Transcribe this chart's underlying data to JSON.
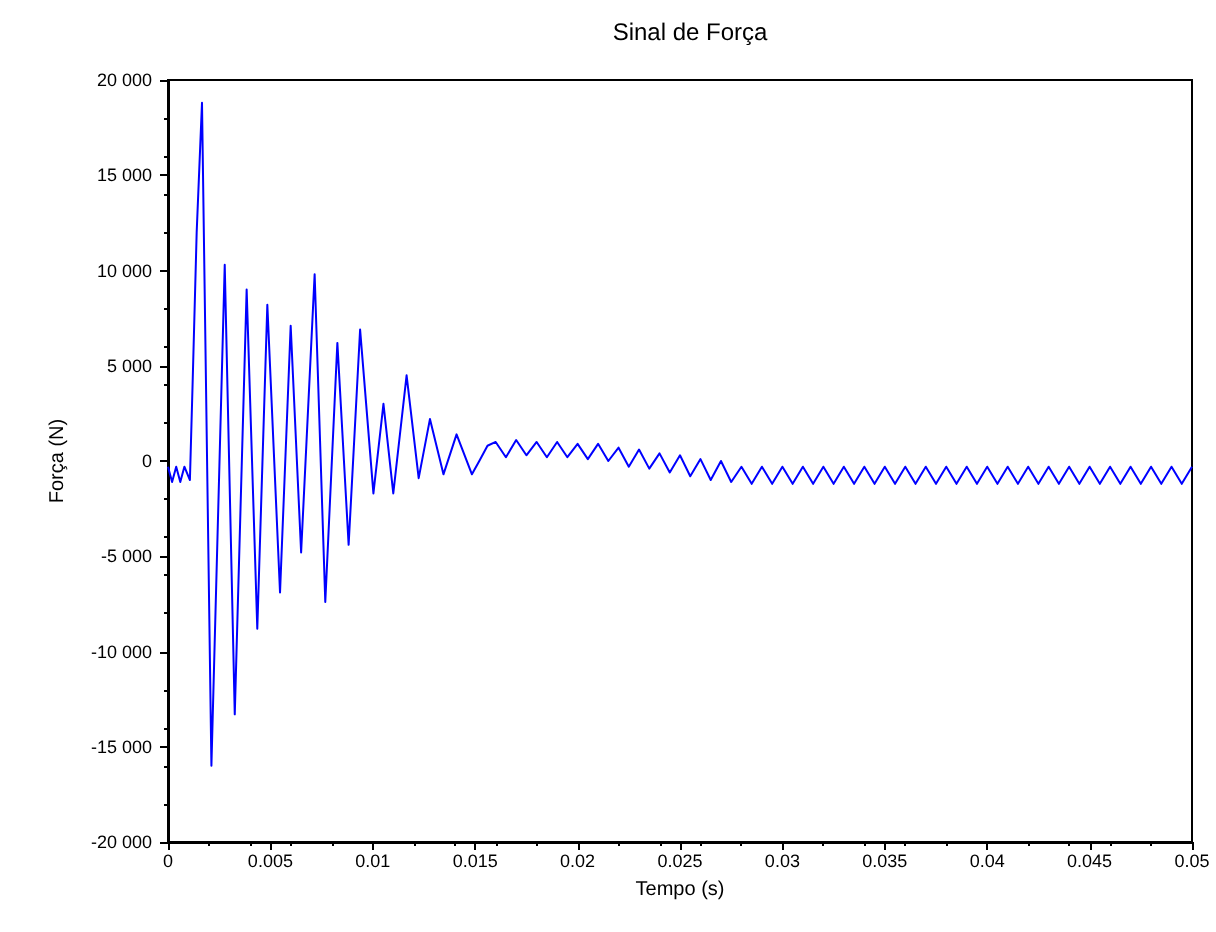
{
  "chart_data": {
    "type": "line",
    "title": "Sinal de Força",
    "xlabel": "Tempo (s)",
    "ylabel": "Força (N)",
    "xlim": [
      0,
      0.05
    ],
    "xticks": [
      {
        "value": 0,
        "label": "0"
      },
      0.005,
      0.01,
      0.015,
      0.02,
      0.025,
      0.03,
      0.035,
      0.04,
      0.045,
      0.05
    ],
    "ylim": [
      -20000,
      20000
    ],
    "yticks": [
      {
        "value": -20000,
        "label": "-20 000"
      },
      {
        "value": -15000,
        "label": "-15 000"
      },
      {
        "value": -10000,
        "label": "-10 000"
      },
      {
        "value": -5000,
        "label": "-5 000"
      },
      {
        "value": 0,
        "label": "0"
      },
      {
        "value": 5000,
        "label": "5 000"
      },
      {
        "value": 10000,
        "label": "10 000"
      },
      {
        "value": 15000,
        "label": "15 000"
      },
      {
        "value": 20000,
        "label": "20 000"
      }
    ],
    "grid": false,
    "marker": "none",
    "line_style": "solid",
    "series": [
      {
        "color": "#0000ff",
        "x": [
          0,
          0.0002,
          0.0004,
          0.0006,
          0.0008,
          0.00107,
          0.0012,
          0.0014,
          0.00166,
          0.00212,
          0.00277,
          0.00326,
          0.00384,
          0.00436,
          0.00485,
          0.00547,
          0.00599,
          0.0065,
          0.00716,
          0.00768,
          0.00827,
          0.00882,
          0.00938,
          0.01003,
          0.01052,
          0.011,
          0.01165,
          0.01224,
          0.01279,
          0.01345,
          0.01409,
          0.01484,
          0.0152,
          0.0156,
          0.016,
          0.0165,
          0.017,
          0.0175,
          0.018,
          0.0185,
          0.019,
          0.0195,
          0.02,
          0.0205,
          0.021,
          0.0215,
          0.022,
          0.0225,
          0.023,
          0.0235,
          0.024,
          0.0245,
          0.025,
          0.0255,
          0.026,
          0.0265,
          0.027,
          0.0275,
          0.028,
          0.0285,
          0.029,
          0.0295,
          0.03,
          0.0305,
          0.031,
          0.0315,
          0.032,
          0.0325,
          0.033,
          0.0335,
          0.034,
          0.0345,
          0.035,
          0.0355,
          0.036,
          0.0365,
          0.037,
          0.0375,
          0.038,
          0.0385,
          0.039,
          0.0395,
          0.04,
          0.0405,
          0.041,
          0.0415,
          0.042,
          0.0425,
          0.043,
          0.0435,
          0.044,
          0.0445,
          0.045,
          0.0455,
          0.046,
          0.0465,
          0.047,
          0.0475,
          0.048,
          0.0485,
          0.049,
          0.0495,
          0.05
        ],
        "values": [
          -300,
          -1100,
          -300,
          -1100,
          -300,
          -1000,
          4000,
          12000,
          18800,
          -16000,
          10300,
          -13300,
          9000,
          -8800,
          8200,
          -6900,
          7100,
          -4800,
          9800,
          -7400,
          6200,
          -4400,
          6900,
          -1700,
          3000,
          -1700,
          4500,
          -900,
          2200,
          -700,
          1400,
          -700,
          0,
          800,
          1000,
          200,
          1100,
          300,
          1000,
          200,
          1000,
          200,
          900,
          100,
          900,
          0,
          700,
          -300,
          600,
          -400,
          400,
          -600,
          300,
          -800,
          100,
          -1000,
          0,
          -1100,
          -300,
          -1200,
          -300,
          -1200,
          -300,
          -1200,
          -300,
          -1200,
          -300,
          -1200,
          -300,
          -1200,
          -300,
          -1200,
          -300,
          -1200,
          -300,
          -1200,
          -300,
          -1200,
          -300,
          -1200,
          -300,
          -1200,
          -300,
          -1200,
          -300,
          -1200,
          -300,
          -1200,
          -300,
          -1200,
          -300,
          -1200,
          -300,
          -1200,
          -300,
          -1200,
          -300,
          -1200,
          -300,
          -1200,
          -300,
          -1200,
          -300
        ]
      }
    ]
  }
}
